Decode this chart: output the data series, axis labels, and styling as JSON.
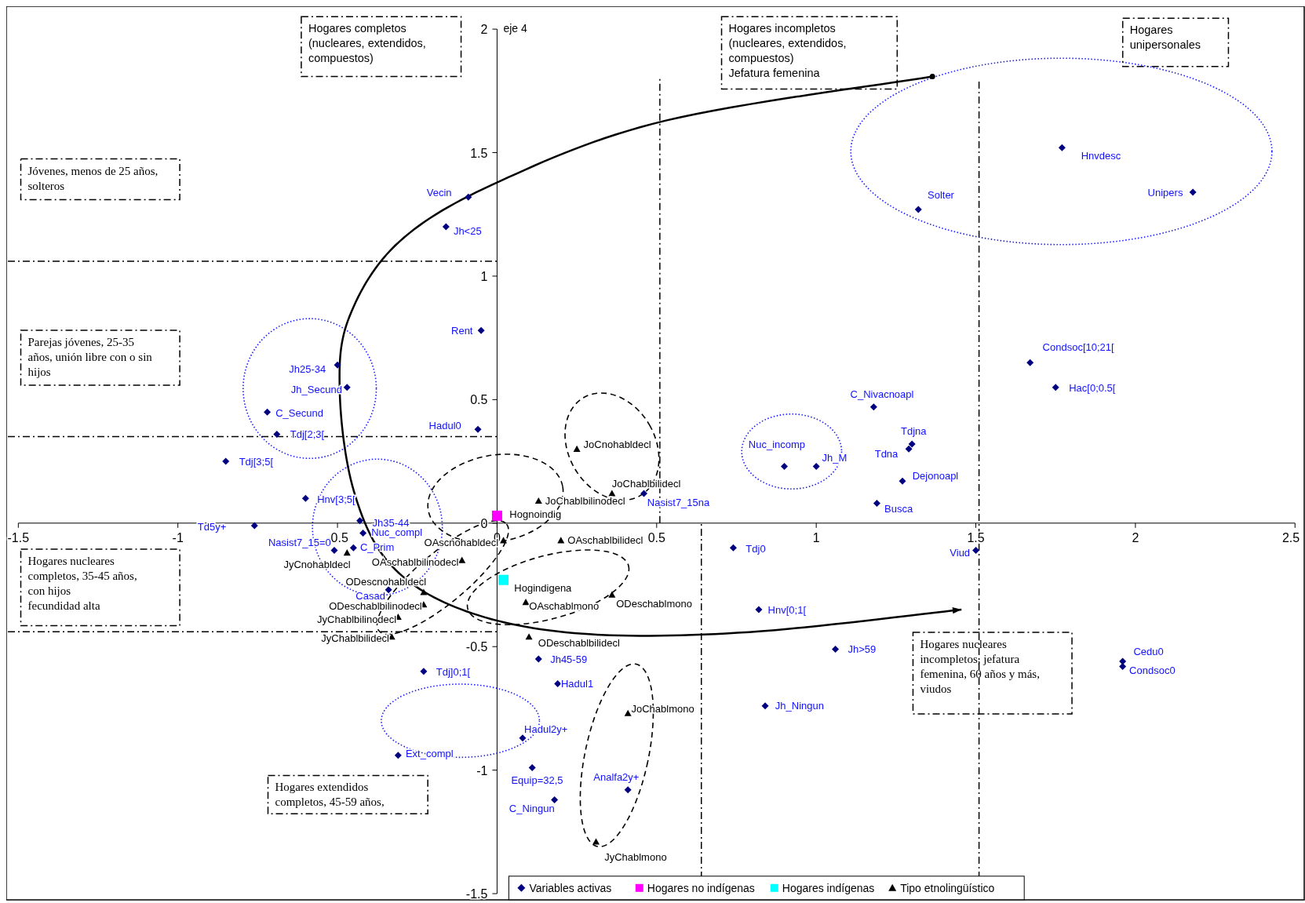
{
  "chart_data": {
    "type": "scatter",
    "ylabel": "eje 4",
    "xlim": [
      -1.5,
      2.5
    ],
    "xticks": [
      -1.5,
      -1,
      -0.5,
      0,
      0.5,
      1,
      1.5,
      2,
      2.5
    ],
    "ylim": [
      -1.5,
      2
    ],
    "yticks": [
      -1.5,
      -1,
      -0.5,
      0,
      0.5,
      1,
      1.5,
      2
    ],
    "grid": false,
    "legend": "bottom",
    "series": [
      {
        "name": "Variables activas",
        "color": "#000080",
        "marker": "diamond",
        "x": [
          -0.09,
          -0.16,
          -0.05,
          -0.5,
          -0.47,
          -0.72,
          -0.69,
          -0.06,
          -0.85,
          -0.6,
          -0.76,
          -0.43,
          -0.42,
          -0.51,
          -0.45,
          -0.34,
          -0.23,
          0.13,
          0.19,
          0.08,
          -0.31,
          0.11,
          0.18,
          0.41,
          0.46,
          0.74,
          0.82,
          1.06,
          0.84,
          1.5,
          1.96,
          1.96,
          1.19,
          1.27,
          1.3,
          1.29,
          1.18,
          0.9,
          1.0,
          1.67,
          1.75,
          1.32,
          1.77,
          2.18
        ],
        "values": [
          1.32,
          1.2,
          0.78,
          0.64,
          0.55,
          0.45,
          0.36,
          0.38,
          0.25,
          0.1,
          -0.01,
          0.01,
          -0.04,
          -0.11,
          -0.1,
          -0.27,
          -0.6,
          -0.55,
          -0.65,
          -0.87,
          -0.94,
          -0.99,
          -1.12,
          -1.08,
          0.12,
          -0.1,
          -0.35,
          -0.51,
          -0.74,
          -0.11,
          -0.56,
          -0.58,
          0.08,
          0.17,
          0.32,
          0.3,
          0.47,
          0.23,
          0.23,
          0.65,
          0.55,
          1.27,
          1.52,
          1.34
        ]
      },
      {
        "name": "Hogares no indígenas",
        "color": "#ff00ff",
        "marker": "square",
        "x": [
          0
        ],
        "values": [
          0.03
        ]
      },
      {
        "name": "Hogares indígenas",
        "color": "#00ffff",
        "marker": "square",
        "x": [
          0.02
        ],
        "values": [
          -0.23
        ]
      },
      {
        "name": "Tipo etnolingüístico",
        "color": "#000000",
        "marker": "triangle",
        "x": [
          0.25,
          0.36,
          0.13,
          0.02,
          0.2,
          -0.47,
          -0.11,
          -0.23,
          -0.23,
          -0.31,
          -0.33,
          0.09,
          0.36,
          0.1,
          0.41,
          0.31
        ],
        "values": [
          0.3,
          0.12,
          0.09,
          -0.07,
          -0.07,
          -0.12,
          -0.15,
          -0.28,
          -0.33,
          -0.38,
          -0.46,
          -0.32,
          -0.29,
          -0.46,
          -0.77,
          -1.29
        ]
      }
    ],
    "ref_lines": [
      {
        "axis": "x",
        "value": 0.51,
        "color": "#000000"
      },
      {
        "axis": "x",
        "value": 0.64,
        "color": "#000000"
      },
      {
        "axis": "x",
        "value": 1.51,
        "color": "#000000"
      },
      {
        "axis": "y",
        "value": 1.06,
        "color": "#000000"
      },
      {
        "axis": "y",
        "value": 0.35,
        "color": "#000000"
      },
      {
        "axis": "y",
        "value": -0.44,
        "color": "#000000"
      }
    ],
    "annotations": [
      {
        "text": "Vecin",
        "x": -0.09,
        "y": 1.32
      },
      {
        "text": "Jh<25",
        "x": -0.16,
        "y": 1.2
      },
      {
        "text": "Rent",
        "x": -0.05,
        "y": 0.78
      },
      {
        "text": "Jh25-34",
        "x": -0.5,
        "y": 0.64
      },
      {
        "text": "Jh_Secund",
        "x": -0.47,
        "y": 0.55
      },
      {
        "text": "C_Secund",
        "x": -0.72,
        "y": 0.45
      },
      {
        "text": "Tdj[2;3[",
        "x": -0.69,
        "y": 0.36
      },
      {
        "text": "Hadul0",
        "x": -0.06,
        "y": 0.38
      },
      {
        "text": "Tdj[3;5[",
        "x": -0.85,
        "y": 0.25
      },
      {
        "text": "Hnv[3;5[",
        "x": -0.6,
        "y": 0.1
      },
      {
        "text": "Td5y+",
        "x": -0.76,
        "y": -0.01
      },
      {
        "text": "Jh35-44",
        "x": -0.43,
        "y": 0.01
      },
      {
        "text": "Nuc_compl",
        "x": -0.42,
        "y": -0.04
      },
      {
        "text": "Nasist7_15=0",
        "x": -0.51,
        "y": -0.11
      },
      {
        "text": "C_Prim",
        "x": -0.45,
        "y": -0.1
      },
      {
        "text": "Casad",
        "x": -0.34,
        "y": -0.27
      },
      {
        "text": "Tdj]0;1[",
        "x": -0.23,
        "y": -0.6
      },
      {
        "text": "Jh45-59",
        "x": 0.13,
        "y": -0.55
      },
      {
        "text": "Hadul1",
        "x": 0.19,
        "y": -0.65
      },
      {
        "text": "Hadul2y+",
        "x": 0.08,
        "y": -0.87
      },
      {
        "text": "Ext_compl",
        "x": -0.31,
        "y": -0.94
      },
      {
        "text": "Equip=32,5",
        "x": 0.11,
        "y": -0.99
      },
      {
        "text": "C_Ningun",
        "x": 0.18,
        "y": -1.12
      },
      {
        "text": "Analfa2y+",
        "x": 0.41,
        "y": -1.08
      },
      {
        "text": "Nasist7_15na",
        "x": 0.46,
        "y": 0.12
      },
      {
        "text": "Tdj0",
        "x": 0.74,
        "y": -0.1
      },
      {
        "text": "Hnv[0;1[",
        "x": 0.82,
        "y": -0.35
      },
      {
        "text": "Jh>59",
        "x": 1.06,
        "y": -0.51
      },
      {
        "text": "Jh_Ningun",
        "x": 0.84,
        "y": -0.74
      },
      {
        "text": "Viud",
        "x": 1.5,
        "y": -0.11
      },
      {
        "text": "Cedu0",
        "x": 1.96,
        "y": -0.56
      },
      {
        "text": "Condsoc0",
        "x": 1.96,
        "y": -0.58
      },
      {
        "text": "Busca",
        "x": 1.19,
        "y": 0.08
      },
      {
        "text": "Dejonoapl",
        "x": 1.27,
        "y": 0.17
      },
      {
        "text": "Tdjna",
        "x": 1.3,
        "y": 0.32
      },
      {
        "text": "Tdna",
        "x": 1.29,
        "y": 0.3
      },
      {
        "text": "C_Nivacnoapl",
        "x": 1.18,
        "y": 0.47
      },
      {
        "text": "Nuc_incomp",
        "x": 0.9,
        "y": 0.23
      },
      {
        "text": "Jh_M",
        "x": 1.0,
        "y": 0.23
      },
      {
        "text": "Condsoc[10;21[",
        "x": 1.67,
        "y": 0.65
      },
      {
        "text": "Hac[0;0.5[",
        "x": 1.75,
        "y": 0.55
      },
      {
        "text": "Solter",
        "x": 1.32,
        "y": 1.27
      },
      {
        "text": "Hnvdesc",
        "x": 1.77,
        "y": 1.52
      },
      {
        "text": "Unipers",
        "x": 2.18,
        "y": 1.34
      },
      {
        "text": "Hognoindig",
        "x": 0,
        "y": 0.03
      },
      {
        "text": "Hogindigena",
        "x": 0.02,
        "y": -0.23
      },
      {
        "text": "JoCnohabldecl",
        "x": 0.25,
        "y": 0.3
      },
      {
        "text": "JoChablbilidecl",
        "x": 0.36,
        "y": 0.12
      },
      {
        "text": "JoChablbilinodecl",
        "x": 0.13,
        "y": 0.09
      },
      {
        "text": "OAscnohabldecl",
        "x": 0.02,
        "y": -0.07
      },
      {
        "text": "OAschablbilidecl",
        "x": 0.2,
        "y": -0.07
      },
      {
        "text": "JyCnohabldecl",
        "x": -0.47,
        "y": -0.12
      },
      {
        "text": "OAschablbilinodecl",
        "x": -0.11,
        "y": -0.15
      },
      {
        "text": "ODescnohabldecl",
        "x": -0.23,
        "y": -0.28
      },
      {
        "text": "ODeschablbilinodecl",
        "x": -0.23,
        "y": -0.33
      },
      {
        "text": "JyChablbilinodecl",
        "x": -0.31,
        "y": -0.38
      },
      {
        "text": "JyChablbilidecl",
        "x": -0.33,
        "y": -0.46
      },
      {
        "text": "OAschablmono",
        "x": 0.09,
        "y": -0.32
      },
      {
        "text": "ODeschablmono",
        "x": 0.36,
        "y": -0.29
      },
      {
        "text": "ODeschablbilidecl",
        "x": 0.1,
        "y": -0.46
      },
      {
        "text": "JoChablmono",
        "x": 0.41,
        "y": -0.77
      },
      {
        "text": "JyChablmono",
        "x": 0.31,
        "y": -1.29
      },
      "Hogares completos\n(nucleares, extendidos,\ncompuestos)",
      "Jóvenes, menos de 25 años,\nsolteros",
      "Parejas jóvenes, 25-35\naños, unión libre con o sin\nhijos",
      "Hogares nucleares\ncompletos, 35-45 años,\ncon hijos\nfecundidad alta",
      "Hogares extendidos\ncompletos, 45-59 años,",
      "Hogares incompletos\n(nucleares, extendidos,\ncompuestos)\nJefatura femenina",
      "Hogares\nunipersonales",
      "Hogares nucleares\nincompletos, jefatura\nfemenina, 60 años y más,\nviudos"
    ]
  }
}
